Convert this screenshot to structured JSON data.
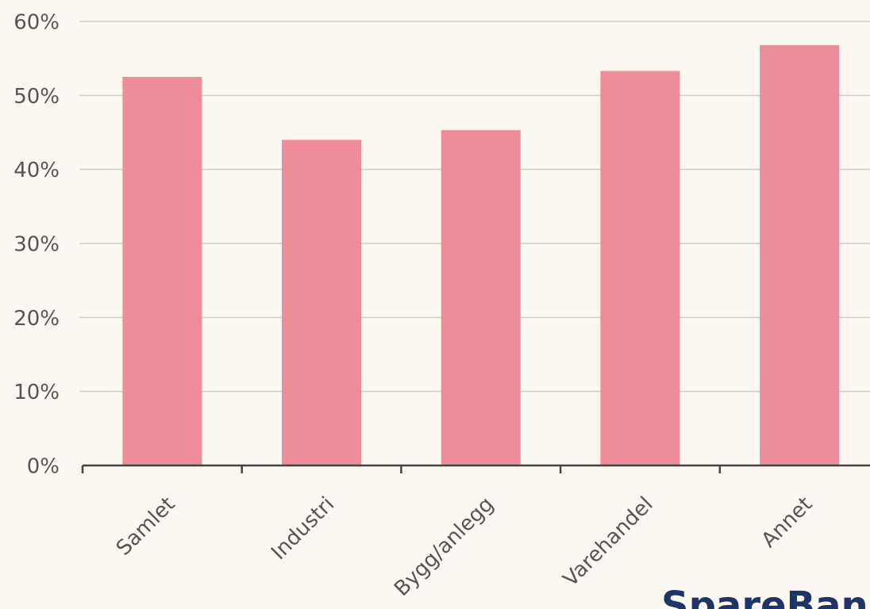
{
  "chart_data": {
    "type": "bar",
    "categories": [
      "Samlet",
      "Industri",
      "Bygg/anlegg",
      "Varehandel",
      "Annet"
    ],
    "values": [
      52.5,
      44,
      45.3,
      53.3,
      56.8
    ],
    "color": "#ef8c9a",
    "ylim": [
      0,
      60
    ],
    "yticks": [
      {
        "value": 0,
        "label": "0%"
      },
      {
        "value": 10,
        "label": "10%"
      },
      {
        "value": 20,
        "label": "20%"
      },
      {
        "value": 30,
        "label": "30%"
      },
      {
        "value": 40,
        "label": "40%"
      },
      {
        "value": 50,
        "label": "50%"
      },
      {
        "value": 60,
        "label": "60%"
      }
    ],
    "grid": true
  },
  "logo": "SpareBank"
}
